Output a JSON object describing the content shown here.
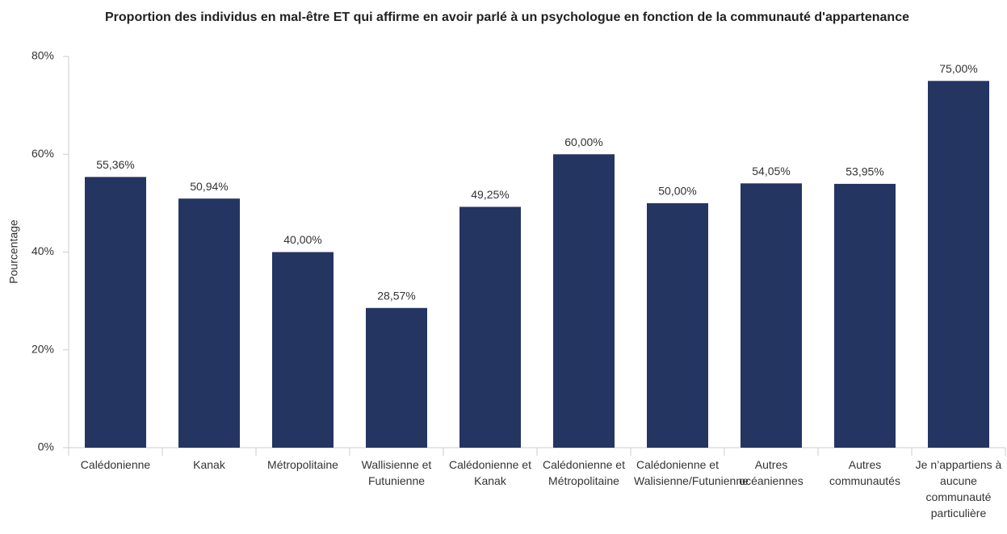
{
  "chart_data": {
    "type": "bar",
    "title": "Proportion des individus en mal-être ET qui affirme en avoir parlé à un psychologue en fonction de la communauté d'appartenance",
    "y_label": "Pourcentage",
    "categories": [
      "Calédonienne",
      "Kanak",
      "Métropolitaine",
      "Wallisienne et Futunienne",
      "Calédonienne et Kanak",
      "Calédonienne et Métropolitaine",
      "Calédonienne et Walisienne/Futunienne",
      "Autres océaniennes",
      "Autres communautés",
      "Je n’appartiens à aucune communauté particulière"
    ],
    "values": [
      55.36,
      50.94,
      40.0,
      28.57,
      49.25,
      60.0,
      50.0,
      54.05,
      53.95,
      75.0
    ],
    "value_labels": [
      "55,36%",
      "50,94%",
      "40,00%",
      "28,57%",
      "49,25%",
      "60,00%",
      "50,00%",
      "54,05%",
      "53,95%",
      "75,00%"
    ],
    "color": "#253562",
    "ylim": [
      0,
      80
    ],
    "yticks": [
      {
        "value": 0,
        "label": "0%"
      },
      {
        "value": 20,
        "label": "20%"
      },
      {
        "value": 40,
        "label": "40%"
      },
      {
        "value": 60,
        "label": "60%"
      },
      {
        "value": 80,
        "label": "80%"
      }
    ],
    "grid": false
  }
}
